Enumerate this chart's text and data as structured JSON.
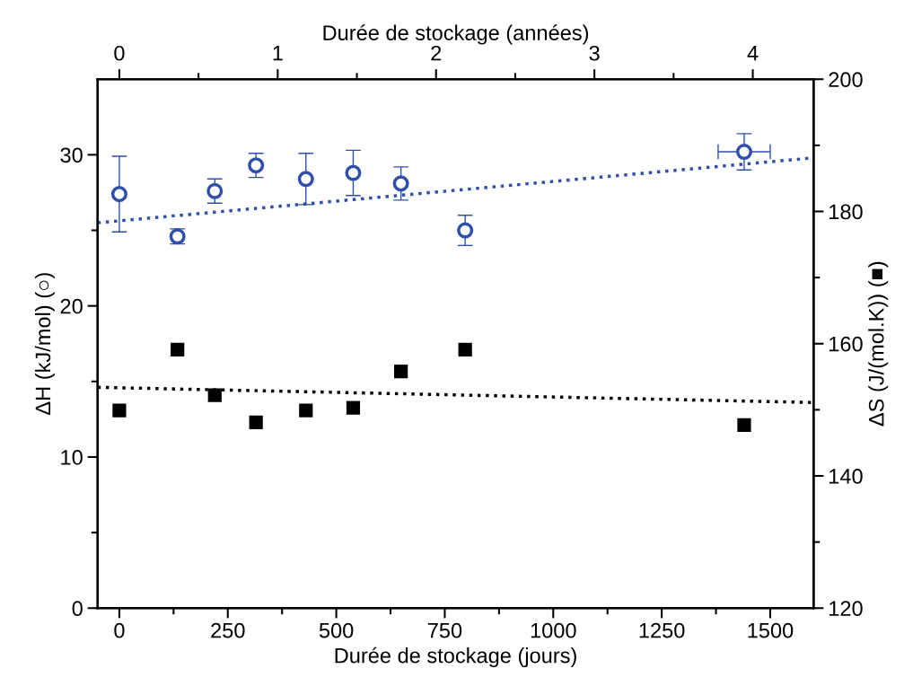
{
  "chart_data": {
    "type": "scatter",
    "xlabel": "Durée de stockage (jours)",
    "x2label": "Durée de stockage (années)",
    "ylabel": "ΔH (kJ/mol) (○)",
    "y2label": "ΔS (J/(mol.K)) (■)",
    "xlim": [
      -50,
      1600
    ],
    "xticks": [
      0,
      {
        "value": 125,
        "label": null
      },
      250,
      {
        "value": 375,
        "label": null
      },
      500,
      {
        "value": 625,
        "label": null
      },
      750,
      {
        "value": 875,
        "label": null
      },
      1000,
      {
        "value": 1125,
        "label": null
      },
      1250,
      {
        "value": 1375,
        "label": null
      },
      1500
    ],
    "x2lim": [
      -0.137,
      4.384
    ],
    "x2ticks": [
      0,
      {
        "value": 0.5,
        "label": null
      },
      1,
      {
        "value": 1.5,
        "label": null
      },
      2,
      {
        "value": 2.5,
        "label": null
      },
      3,
      {
        "value": 3.5,
        "label": null
      },
      4
    ],
    "ylim": [
      0,
      35
    ],
    "yticks": [
      0,
      {
        "value": 5,
        "label": null
      },
      10,
      {
        "value": 15,
        "label": null
      },
      20,
      {
        "value": 25,
        "label": null
      },
      30
    ],
    "y2lim": [
      120,
      200
    ],
    "y2ticks": [
      120,
      {
        "value": 130,
        "label": null
      },
      140,
      {
        "value": 150,
        "label": null
      },
      160,
      {
        "value": 170,
        "label": null
      },
      180,
      {
        "value": 190,
        "label": null
      },
      200
    ],
    "grid": false,
    "series": [
      {
        "type": "line",
        "axis": "y",
        "color": "#2f4fa8",
        "line_style": "dotted",
        "marker": "none",
        "x": [
          -50,
          1600
        ],
        "values": [
          25.5,
          29.8
        ]
      },
      {
        "type": "line",
        "axis": "y2",
        "color": "#000000",
        "line_style": "dotted",
        "marker": "none",
        "x": [
          -50,
          1600
        ],
        "values": [
          153.4,
          151.1
        ]
      },
      {
        "axis": "y",
        "color": "#2f4fa8",
        "marker": "circle",
        "x": [
          0,
          134,
          220,
          315,
          430,
          539,
          649,
          797,
          1440
        ],
        "values": [
          27.4,
          24.6,
          27.6,
          29.3,
          28.4,
          28.8,
          28.1,
          25.0,
          30.2
        ],
        "errors": [
          2.5,
          0.5,
          0.8,
          0.8,
          1.7,
          1.5,
          1.1,
          1.0,
          1.2
        ],
        "xerrors": [
          null,
          null,
          null,
          null,
          null,
          null,
          null,
          null,
          60
        ]
      },
      {
        "axis": "y2",
        "color": "#000000",
        "marker": "square",
        "x": [
          0,
          134,
          220,
          315,
          430,
          539,
          649,
          797,
          1440
        ],
        "values": [
          149.9,
          159.1,
          152.2,
          148.1,
          149.9,
          150.3,
          155.8,
          159.1,
          147.7
        ]
      }
    ]
  }
}
